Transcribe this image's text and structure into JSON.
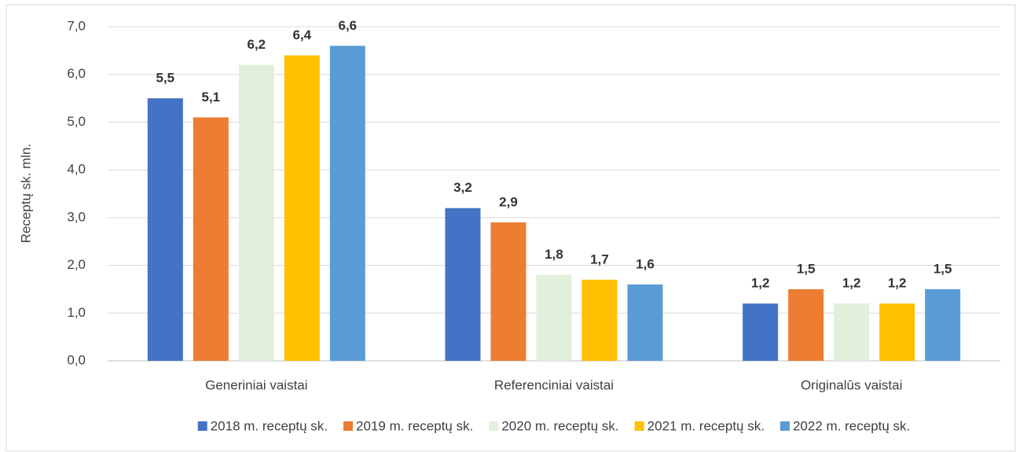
{
  "chart_data": {
    "type": "bar",
    "y_label": "Receptų sk. mln.",
    "categories": [
      "Generiniai vaistai",
      "Referenciniai vaistai",
      "Originalūs vaistai"
    ],
    "series": [
      {
        "name": "2018 m. receptų sk.",
        "color": "#4472c4",
        "values": [
          5.5,
          3.2,
          1.2
        ],
        "value_labels": [
          "5,5",
          "3,2",
          "1,2"
        ]
      },
      {
        "name": "2019 m. receptų sk.",
        "color": "#ed7d31",
        "values": [
          5.1,
          2.9,
          1.5
        ],
        "value_labels": [
          "5,1",
          "2,9",
          "1,5"
        ]
      },
      {
        "name": "2020 m. receptų sk.",
        "color": "#e2efda",
        "values": [
          6.2,
          1.8,
          1.2
        ],
        "value_labels": [
          "6,2",
          "1,8",
          "1,2"
        ]
      },
      {
        "name": "2021 m. receptų sk.",
        "color": "#ffc000",
        "values": [
          6.4,
          1.7,
          1.2
        ],
        "value_labels": [
          "6,4",
          "1,7",
          "1,2"
        ]
      },
      {
        "name": "2022 m. receptų sk.",
        "color": "#5b9bd5",
        "values": [
          6.6,
          1.6,
          1.5
        ],
        "value_labels": [
          "6,6",
          "1,6",
          "1,5"
        ]
      }
    ],
    "ylim": [
      0,
      7
    ],
    "yticks": [
      {
        "value": 0,
        "label": "0,0"
      },
      {
        "value": 1,
        "label": "1,0"
      },
      {
        "value": 2,
        "label": "2,0"
      },
      {
        "value": 3,
        "label": "3,0"
      },
      {
        "value": 4,
        "label": "4,0"
      },
      {
        "value": 5,
        "label": "5,0"
      },
      {
        "value": 6,
        "label": "6,0"
      },
      {
        "value": 7,
        "label": "7,0"
      }
    ],
    "grid": true,
    "legend": "bottom"
  }
}
